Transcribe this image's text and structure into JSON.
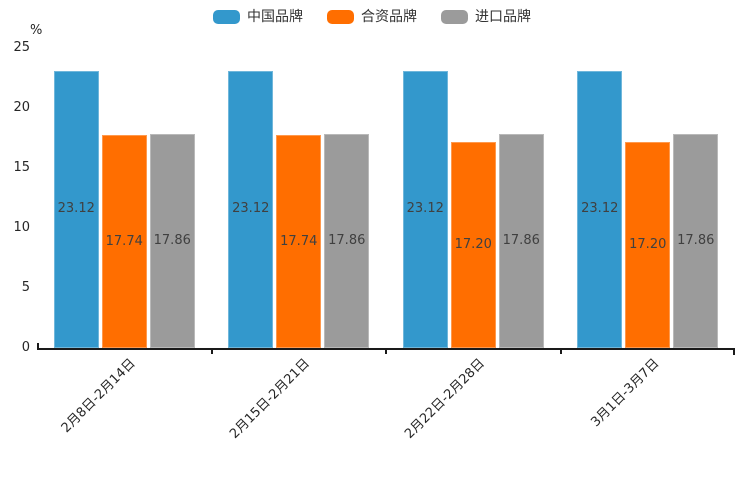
{
  "chart_data": {
    "type": "bar",
    "title": "",
    "categories": [
      "2月8日-2月14日",
      "2月15日-2月21日",
      "2月22日-2月28日",
      "3月1日-3月7日"
    ],
    "series": [
      {
        "key": "china-brand",
        "name": "中国品牌",
        "color": "#3398cc",
        "values": [
          23.12,
          23.12,
          23.12,
          23.12
        ]
      },
      {
        "key": "joint-venture-brand",
        "name": "合资品牌",
        "color": "#ff6e00",
        "values": [
          17.74,
          17.74,
          17.2,
          17.2
        ]
      },
      {
        "key": "import-brand",
        "name": "进口品牌",
        "color": "#9b9b9b",
        "values": [
          17.86,
          17.86,
          17.86,
          17.86
        ]
      }
    ],
    "value_labels": [
      [
        "23.12",
        "17.74",
        "17.86"
      ],
      [
        "23.12",
        "17.74",
        "17.86"
      ],
      [
        "23.12",
        "17.20",
        "17.86"
      ],
      [
        "23.12",
        "17.20",
        "17.86"
      ]
    ],
    "y_axis": {
      "label": "%",
      "min": 0,
      "max": 25,
      "ticks": [
        25,
        20,
        15,
        10,
        5,
        0
      ]
    },
    "legend_position": "top",
    "grid": false,
    "bar_value_label_position": "middle",
    "x_label_rotation_deg": 45
  }
}
